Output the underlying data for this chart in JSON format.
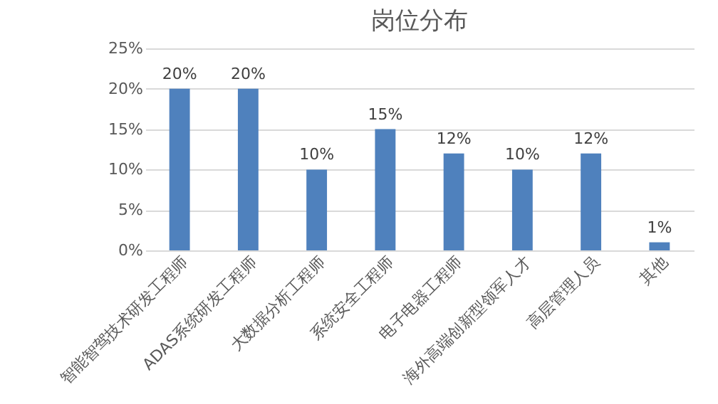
{
  "chart_data": {
    "type": "bar",
    "title": "岗位分布",
    "categories": [
      "智能智驾技术研发工程师",
      "ADAS系统研发工程师",
      "大数据分析工程师",
      "系统安全工程师",
      "电子电器工程师",
      "海外高端创新型领军人才",
      "高层管理人员",
      "其他"
    ],
    "values": [
      20,
      20,
      10,
      15,
      12,
      10,
      12,
      1
    ],
    "value_labels": [
      "20%",
      "20%",
      "10%",
      "15%",
      "12%",
      "10%",
      "12%",
      "1%"
    ],
    "color": "#4f81bd",
    "ylim": [
      0,
      25
    ],
    "yticks": [
      {
        "value": 0,
        "label": "0%"
      },
      {
        "value": 5,
        "label": "5%"
      },
      {
        "value": 10,
        "label": "10%"
      },
      {
        "value": 15,
        "label": "15%"
      },
      {
        "value": 20,
        "label": "20%"
      },
      {
        "value": 25,
        "label": "25%"
      }
    ],
    "grid": "y"
  }
}
